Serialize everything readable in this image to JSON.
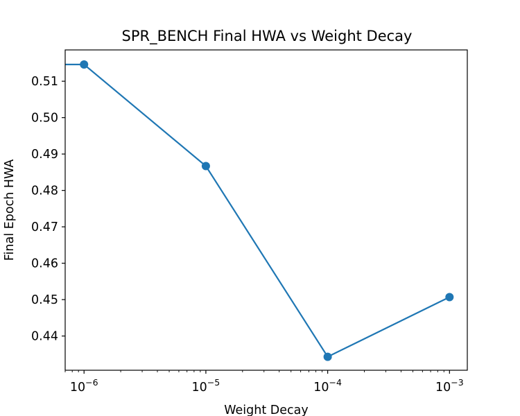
{
  "chart_data": {
    "type": "line",
    "title": "SPR_BENCH Final HWA vs Weight Decay",
    "xlabel": "Weight Decay",
    "ylabel": "Final Epoch HWA",
    "xscale": "log",
    "xlim": [
      7e-07,
      0.0014
    ],
    "ylim": [
      0.4306,
      0.5186
    ],
    "x": [
      0.0,
      1e-06,
      1e-05,
      0.0001,
      0.001
    ],
    "series": [
      {
        "values": [
          0.5146,
          0.5146,
          0.4867,
          0.4343,
          0.4507
        ],
        "color": "#1f77b4"
      }
    ],
    "x_ticks": [
      {
        "value": 1e-06,
        "base": "10",
        "exp": "−6"
      },
      {
        "value": 1e-05,
        "base": "10",
        "exp": "−5"
      },
      {
        "value": 0.0001,
        "base": "10",
        "exp": "−4"
      },
      {
        "value": 0.001,
        "base": "10",
        "exp": "−3"
      }
    ],
    "y_ticks": [
      {
        "value": 0.44,
        "label": "0.44"
      },
      {
        "value": 0.45,
        "label": "0.45"
      },
      {
        "value": 0.46,
        "label": "0.46"
      },
      {
        "value": 0.47,
        "label": "0.47"
      },
      {
        "value": 0.48,
        "label": "0.48"
      },
      {
        "value": 0.49,
        "label": "0.49"
      },
      {
        "value": 0.5,
        "label": "0.50"
      },
      {
        "value": 0.51,
        "label": "0.51"
      }
    ],
    "grid": false,
    "legend": "none"
  }
}
